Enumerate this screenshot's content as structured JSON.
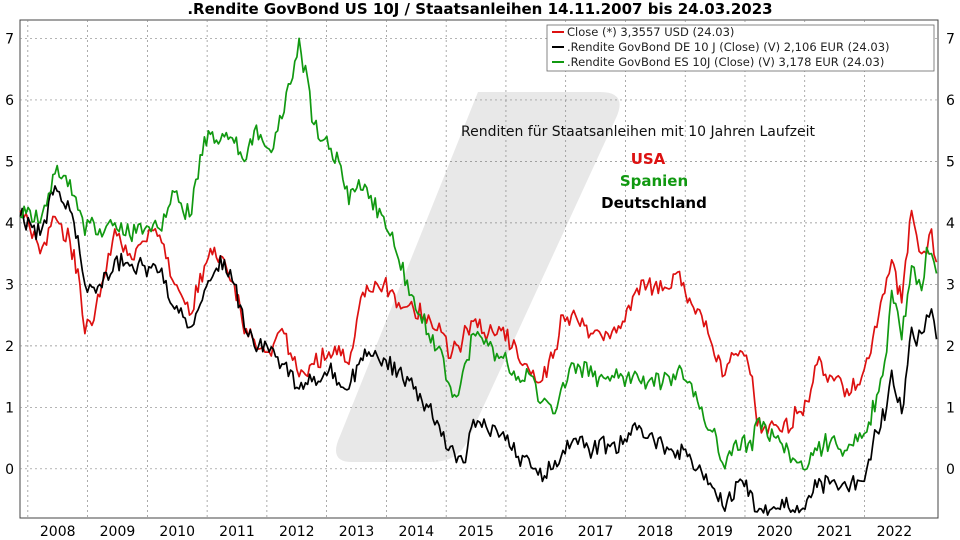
{
  "chart_data": {
    "type": "line",
    "title": ".Rendite GovBond US 10J / Staatsanleihen 14.11.2007 bis 24.03.2023",
    "xlabel": "",
    "ylabel": "",
    "x_tick_labels": [
      "2008",
      "2009",
      "2010",
      "2011",
      "2012",
      "2013",
      "2014",
      "2015",
      "2016",
      "2017",
      "2018",
      "2019",
      "2020",
      "2021",
      "2022"
    ],
    "y_ticks": [
      0,
      1,
      2,
      3,
      4,
      5,
      6,
      7
    ],
    "ylim": [
      -0.8,
      7.3
    ],
    "xlim": [
      "2007-11-14",
      "2023-03-24"
    ],
    "grid": true,
    "legend_position": "top-right",
    "annotation": "Renditen für Staatsanleihen mit 10 Jahren Laufzeit",
    "annotation_labels": [
      {
        "text": "USA",
        "color": "#dd1111"
      },
      {
        "text": "Spanien",
        "color": "#119911"
      },
      {
        "text": "Deutschland",
        "color": "#000000"
      }
    ],
    "series": [
      {
        "name": "Close (*) 3,3557 USD (24.03)",
        "color": "#dd1111",
        "x": [
          "2007-11",
          "2008-01",
          "2008-03",
          "2008-06",
          "2008-09",
          "2008-11",
          "2008-12",
          "2009-01",
          "2009-03",
          "2009-06",
          "2009-09",
          "2009-12",
          "2010-03",
          "2010-06",
          "2010-09",
          "2010-12",
          "2011-02",
          "2011-04",
          "2011-06",
          "2011-08",
          "2011-10",
          "2012-01",
          "2012-04",
          "2012-07",
          "2012-10",
          "2013-01",
          "2013-03",
          "2013-05",
          "2013-07",
          "2013-09",
          "2013-12",
          "2014-03",
          "2014-06",
          "2014-09",
          "2014-12",
          "2015-01",
          "2015-03",
          "2015-06",
          "2015-09",
          "2015-12",
          "2016-03",
          "2016-06",
          "2016-07",
          "2016-10",
          "2016-12",
          "2017-03",
          "2017-06",
          "2017-09",
          "2017-12",
          "2018-02",
          "2018-05",
          "2018-08",
          "2018-11",
          "2019-01",
          "2019-03",
          "2019-06",
          "2019-08",
          "2019-09",
          "2019-12",
          "2020-02",
          "2020-03",
          "2020-08",
          "2020-11",
          "2021-01",
          "2021-03",
          "2021-06",
          "2021-09",
          "2021-12",
          "2022-01",
          "2022-03",
          "2022-05",
          "2022-06",
          "2022-08",
          "2022-10",
          "2022-11",
          "2022-12",
          "2023-01",
          "2023-02",
          "2023-03"
        ],
        "y": [
          4.2,
          3.9,
          3.5,
          4.1,
          3.7,
          3.0,
          2.2,
          2.4,
          2.8,
          3.9,
          3.5,
          3.7,
          3.8,
          3.0,
          2.5,
          3.3,
          3.6,
          3.4,
          3.0,
          2.2,
          2.1,
          1.9,
          2.2,
          1.5,
          1.7,
          1.9,
          2.0,
          1.7,
          2.6,
          2.9,
          3.0,
          2.7,
          2.6,
          2.5,
          2.2,
          1.8,
          2.0,
          2.4,
          2.2,
          2.3,
          1.8,
          1.6,
          1.4,
          1.8,
          2.5,
          2.4,
          2.2,
          2.2,
          2.4,
          2.8,
          3.0,
          2.9,
          3.2,
          2.7,
          2.6,
          2.0,
          1.5,
          1.7,
          1.9,
          1.5,
          0.7,
          0.6,
          0.9,
          1.1,
          1.7,
          1.5,
          1.3,
          1.5,
          1.8,
          2.3,
          3.1,
          3.4,
          2.7,
          4.2,
          3.8,
          3.5,
          3.5,
          3.9,
          3.36
        ]
      },
      {
        "name": ".Rendite GovBond DE 10 J (Close) (V) 2,106 EUR (24.03)",
        "color": "#000000",
        "x": [
          "2007-11",
          "2008-01",
          "2008-03",
          "2008-06",
          "2008-09",
          "2008-11",
          "2008-12",
          "2009-01",
          "2009-03",
          "2009-06",
          "2009-09",
          "2009-12",
          "2010-03",
          "2010-06",
          "2010-09",
          "2010-12",
          "2011-02",
          "2011-04",
          "2011-06",
          "2011-08",
          "2011-10",
          "2012-01",
          "2012-04",
          "2012-07",
          "2012-10",
          "2013-01",
          "2013-03",
          "2013-05",
          "2013-07",
          "2013-09",
          "2013-12",
          "2014-03",
          "2014-06",
          "2014-09",
          "2014-12",
          "2015-01",
          "2015-03",
          "2015-04",
          "2015-06",
          "2015-09",
          "2015-12",
          "2016-03",
          "2016-06",
          "2016-07",
          "2016-10",
          "2016-12",
          "2017-03",
          "2017-06",
          "2017-09",
          "2017-12",
          "2018-02",
          "2018-05",
          "2018-08",
          "2018-11",
          "2019-01",
          "2019-03",
          "2019-06",
          "2019-08",
          "2019-09",
          "2019-12",
          "2020-02",
          "2020-03",
          "2020-08",
          "2020-11",
          "2021-01",
          "2021-03",
          "2021-06",
          "2021-09",
          "2021-12",
          "2022-01",
          "2022-03",
          "2022-05",
          "2022-06",
          "2022-08",
          "2022-10",
          "2022-11",
          "2022-12",
          "2023-01",
          "2023-02",
          "2023-03"
        ],
        "y": [
          4.1,
          4.0,
          3.8,
          4.6,
          4.2,
          3.5,
          3.0,
          3.0,
          3.0,
          3.4,
          3.3,
          3.3,
          3.2,
          2.6,
          2.3,
          2.9,
          3.2,
          3.4,
          3.0,
          2.3,
          2.0,
          1.9,
          1.7,
          1.3,
          1.5,
          1.6,
          1.4,
          1.3,
          1.7,
          1.9,
          1.8,
          1.6,
          1.3,
          1.0,
          0.6,
          0.3,
          0.2,
          0.1,
          0.8,
          0.6,
          0.6,
          0.2,
          0.0,
          -0.1,
          0.0,
          0.3,
          0.4,
          0.3,
          0.4,
          0.4,
          0.7,
          0.5,
          0.4,
          0.3,
          0.2,
          0.0,
          -0.3,
          -0.6,
          -0.5,
          -0.2,
          -0.4,
          -0.7,
          -0.5,
          -0.6,
          -0.5,
          -0.3,
          -0.2,
          -0.3,
          -0.2,
          0.0,
          0.6,
          1.0,
          1.6,
          0.9,
          2.3,
          2.0,
          2.2,
          2.5,
          2.6,
          2.106
        ]
      },
      {
        "name": ".Rendite GovBond ES 10J (Close) (V) 3,178 EUR (24.03)",
        "color": "#119911",
        "x": [
          "2007-11",
          "2008-01",
          "2008-03",
          "2008-06",
          "2008-09",
          "2008-11",
          "2008-12",
          "2009-01",
          "2009-03",
          "2009-06",
          "2009-09",
          "2009-12",
          "2010-03",
          "2010-06",
          "2010-09",
          "2010-12",
          "2011-02",
          "2011-04",
          "2011-06",
          "2011-08",
          "2011-10",
          "2012-01",
          "2012-04",
          "2012-07",
          "2012-10",
          "2013-01",
          "2013-03",
          "2013-05",
          "2013-07",
          "2013-09",
          "2013-12",
          "2014-03",
          "2014-06",
          "2014-09",
          "2014-12",
          "2015-01",
          "2015-03",
          "2015-06",
          "2015-09",
          "2015-12",
          "2016-03",
          "2016-06",
          "2016-07",
          "2016-10",
          "2016-12",
          "2017-03",
          "2017-06",
          "2017-09",
          "2017-12",
          "2018-02",
          "2018-05",
          "2018-08",
          "2018-11",
          "2019-01",
          "2019-03",
          "2019-06",
          "2019-08",
          "2019-09",
          "2019-12",
          "2020-02",
          "2020-03",
          "2020-08",
          "2020-11",
          "2021-01",
          "2021-03",
          "2021-06",
          "2021-09",
          "2021-12",
          "2022-01",
          "2022-03",
          "2022-05",
          "2022-06",
          "2022-08",
          "2022-10",
          "2022-11",
          "2022-12",
          "2023-01",
          "2023-02",
          "2023-03"
        ],
        "y": [
          4.1,
          4.2,
          4.0,
          4.8,
          4.7,
          4.2,
          3.8,
          4.0,
          3.9,
          4.0,
          3.8,
          3.9,
          3.9,
          4.5,
          4.1,
          5.4,
          5.3,
          5.4,
          5.3,
          5.0,
          5.5,
          5.2,
          5.8,
          7.0,
          5.6,
          5.2,
          5.0,
          4.3,
          4.7,
          4.4,
          4.1,
          3.4,
          2.8,
          2.2,
          1.8,
          1.4,
          1.2,
          2.2,
          2.0,
          1.8,
          1.5,
          1.5,
          1.1,
          0.9,
          1.4,
          1.7,
          1.5,
          1.5,
          1.5,
          1.5,
          1.4,
          1.4,
          1.6,
          1.4,
          1.1,
          0.6,
          0.1,
          0.2,
          0.5,
          0.3,
          0.8,
          0.4,
          0.1,
          0.0,
          0.3,
          0.5,
          0.3,
          0.5,
          0.6,
          1.2,
          1.9,
          2.9,
          2.1,
          3.3,
          3.0,
          2.9,
          3.6,
          3.5,
          3.178
        ]
      }
    ]
  }
}
